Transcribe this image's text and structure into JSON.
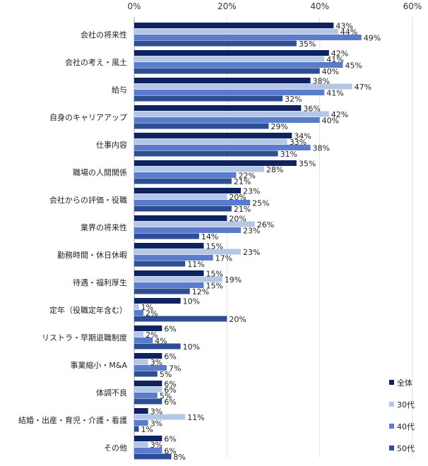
{
  "chart_data": {
    "type": "bar",
    "orientation": "horizontal",
    "title": "",
    "xlabel": "",
    "ylabel": "",
    "xlim": [
      0,
      60
    ],
    "xticks": [
      "0%",
      "20%",
      "40%",
      "60%"
    ],
    "grid": true,
    "legend_position": "bottom-right",
    "categories": [
      "会社の将来性",
      "会社の考え・風土",
      "給与",
      "自身のキャリアアップ",
      "仕事内容",
      "職場の人間関係",
      "会社からの評価・役職",
      "業界の将来性",
      "勤務時間・休日休暇",
      "待遇・福利厚生",
      "定年（役職定年含む）",
      "リストラ・早期退職制度",
      "事業縮小・M&A",
      "体調不良",
      "結婚・出産・育児・介護・看護",
      "その他"
    ],
    "series": [
      {
        "name": "全体",
        "color": "#0d2360",
        "values": [
          43,
          42,
          38,
          36,
          34,
          35,
          23,
          20,
          15,
          15,
          10,
          6,
          6,
          6,
          3,
          6
        ]
      },
      {
        "name": "30代",
        "color": "#b4c7e7",
        "values": [
          44,
          41,
          47,
          42,
          33,
          28,
          20,
          26,
          23,
          19,
          1,
          2,
          3,
          6,
          11,
          3
        ]
      },
      {
        "name": "40代",
        "color": "#5b7ccc",
        "values": [
          49,
          45,
          41,
          40,
          38,
          22,
          25,
          23,
          17,
          15,
          2,
          4,
          7,
          5,
          3,
          6
        ]
      },
      {
        "name": "50代",
        "color": "#2e4e94",
        "values": [
          35,
          40,
          32,
          29,
          31,
          21,
          21,
          14,
          11,
          12,
          20,
          10,
          5,
          6,
          1,
          8
        ]
      }
    ]
  }
}
